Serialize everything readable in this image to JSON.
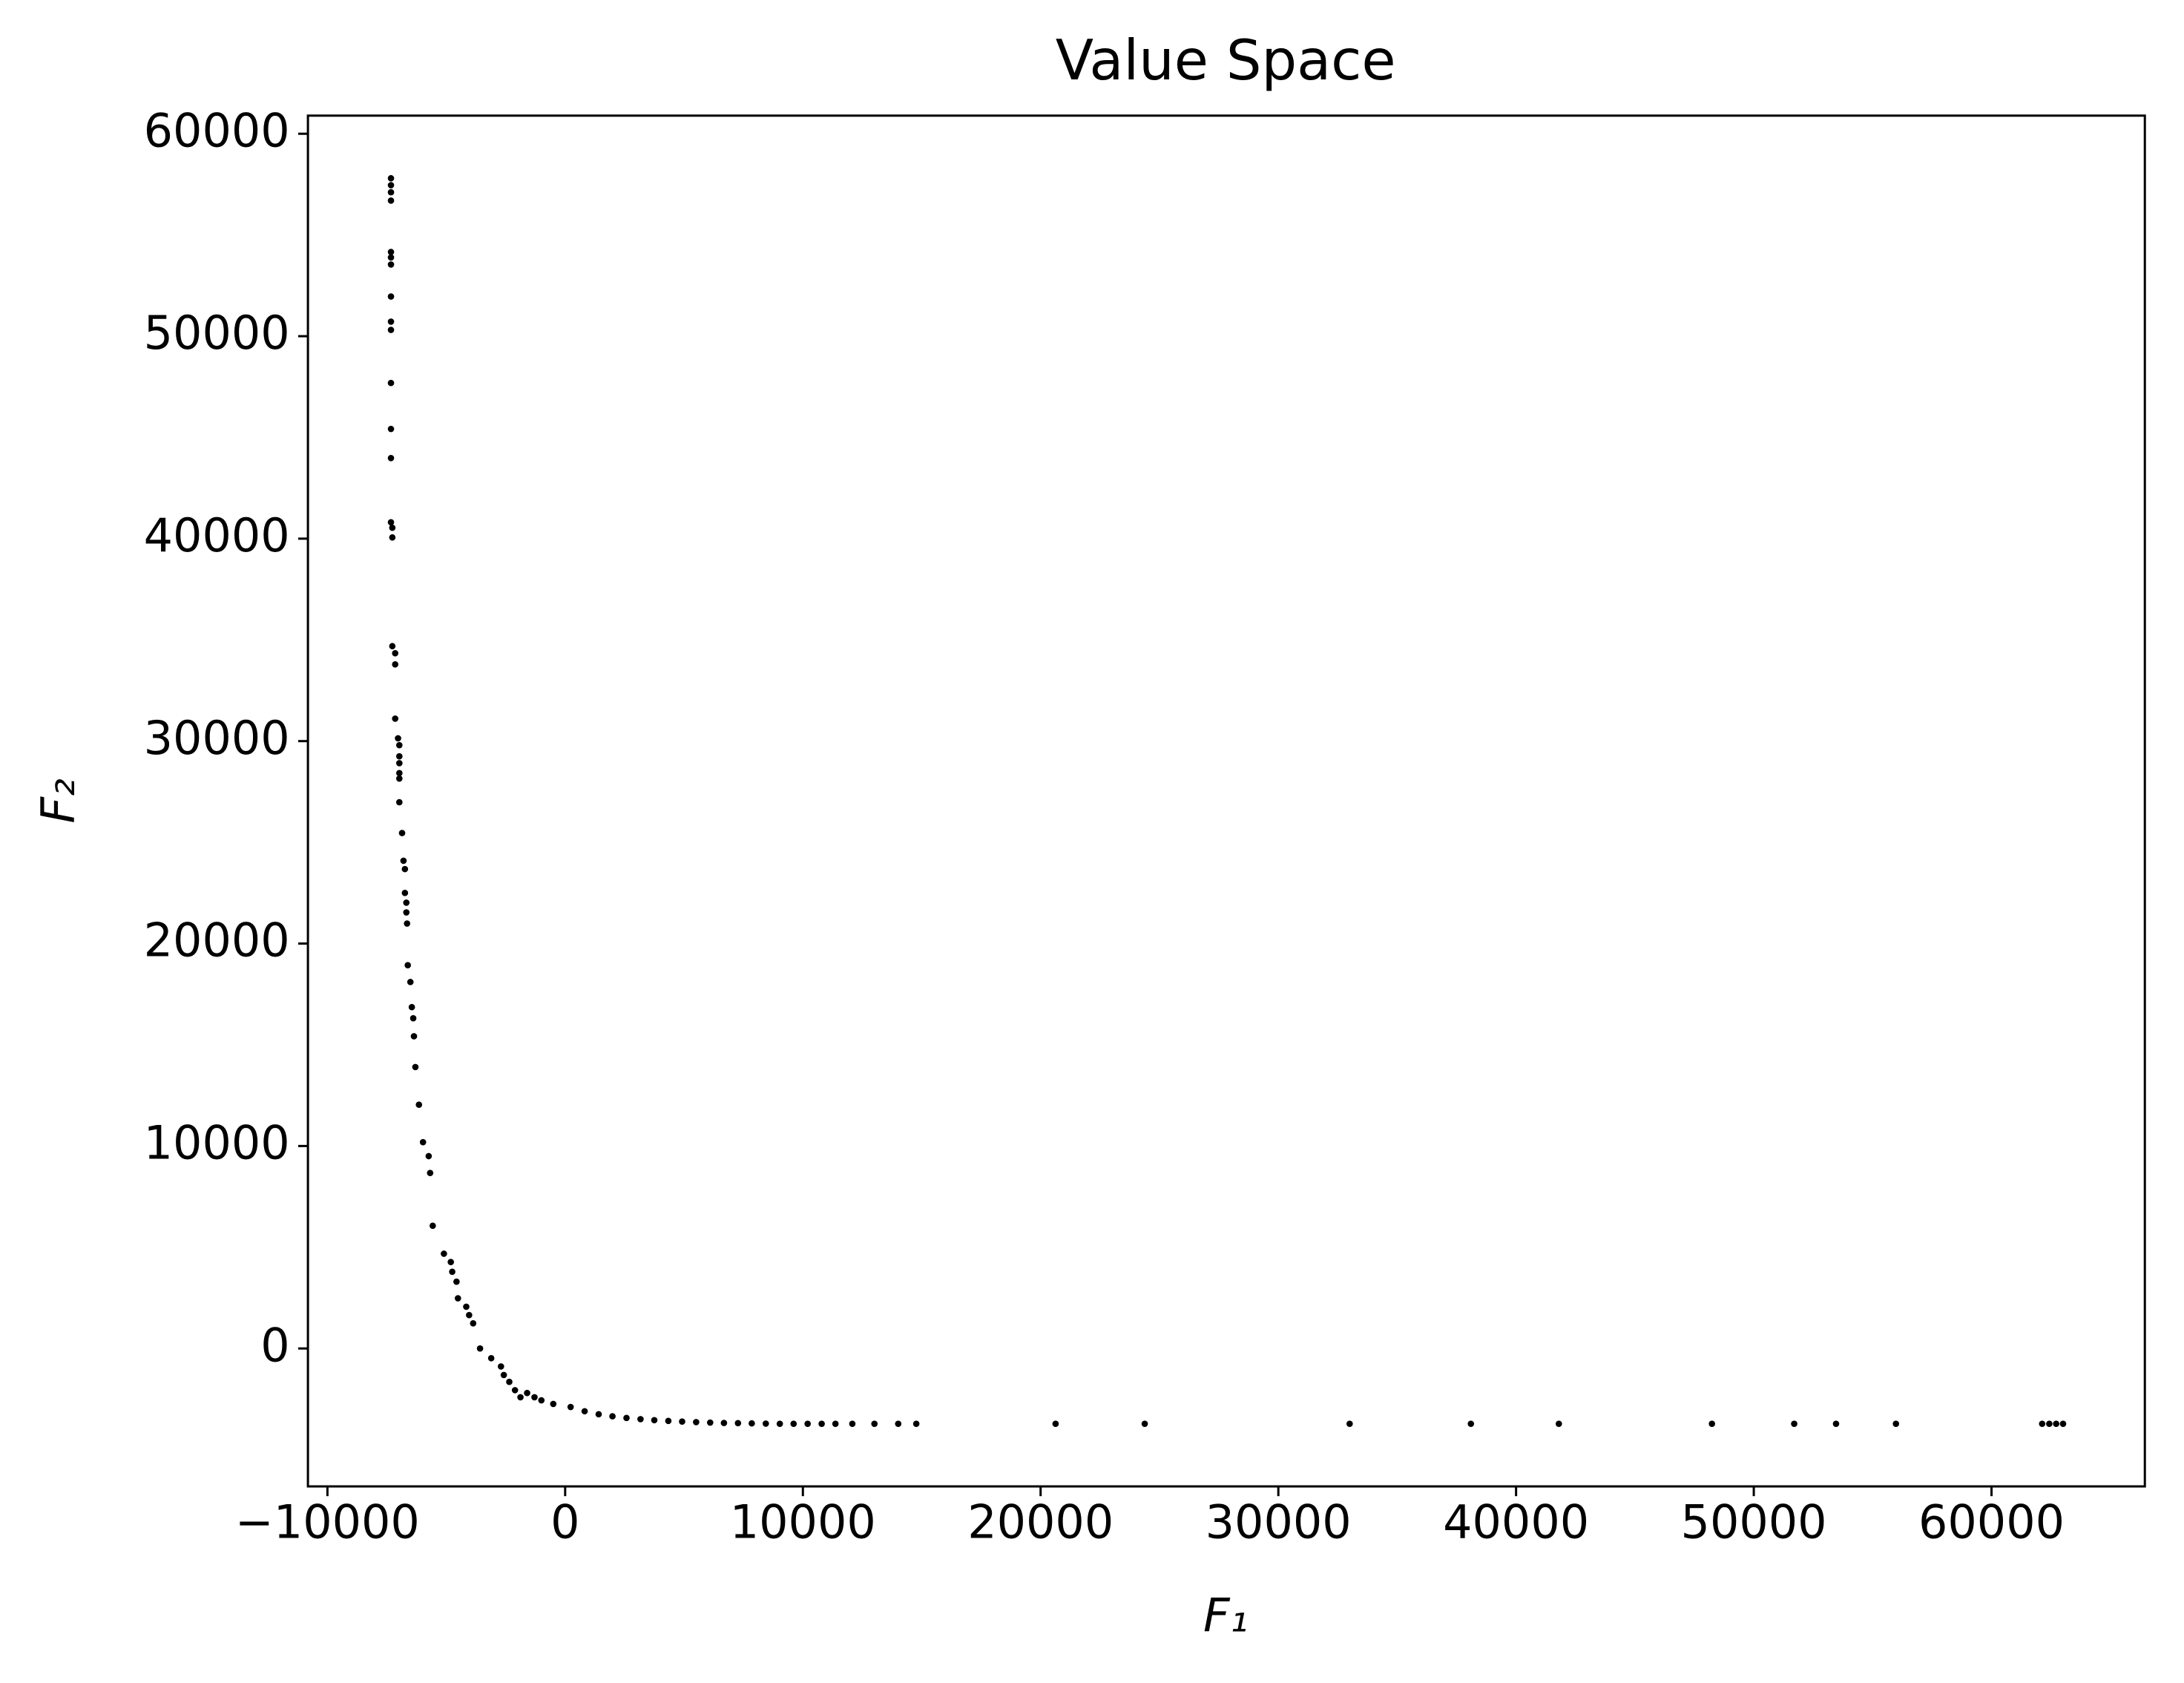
{
  "chart_data": {
    "type": "scatter",
    "title": "Value Space",
    "xlabel": "F₁",
    "ylabel": "F₂",
    "color": "#000000",
    "x": [
      -7327,
      -7327,
      -7327,
      -7327,
      -7327,
      -7327,
      -7327,
      -7327,
      -7327,
      -7327,
      -7327,
      -7327,
      -7327,
      -7327,
      -7270,
      -7270,
      -7270,
      -7150,
      -7150,
      -7150,
      -7030,
      -6975,
      -6975,
      -6975,
      -6975,
      -6975,
      -6975,
      -6860,
      -6800,
      -6740,
      -6740,
      -6680,
      -6680,
      -6650,
      -6620,
      -6510,
      -6450,
      -6390,
      -6360,
      -6300,
      -6150,
      -5980,
      -5740,
      -5680,
      -5570,
      -5100,
      -4810,
      -4750,
      -4570,
      -4510,
      -4160,
      -4040,
      -3870,
      -3580,
      -3110,
      -2700,
      -2580,
      -2350,
      -2110,
      -1880,
      -1600,
      -1290,
      -1000,
      -500,
      230,
      820,
      1410,
      1990,
      2580,
      3170,
      3750,
      4340,
      4920,
      5510,
      6100,
      6680,
      7270,
      7850,
      8440,
      9030,
      9610,
      10200,
      10790,
      11370,
      12080,
      13010,
      14010,
      14770,
      20630,
      24380,
      33000,
      38100,
      41800,
      48240,
      51700,
      53460,
      55980,
      62130,
      62430,
      62720,
      63010
    ],
    "values": [
      57800,
      57460,
      57110,
      56700,
      54160,
      53890,
      53540,
      51960,
      50720,
      50310,
      47690,
      45420,
      43980,
      40810,
      40540,
      40060,
      34690,
      34340,
      33790,
      31110,
      30140,
      29800,
      29250,
      28910,
      28420,
      28150,
      26980,
      25460,
      24090,
      23680,
      22500,
      22020,
      21540,
      20990,
      18930,
      18100,
      16860,
      16310,
      15420,
      13900,
      12040,
      10190,
      9500,
      8670,
      6060,
      4680,
      4270,
      3790,
      3300,
      2480,
      2060,
      1650,
      1240,
      0,
      -480,
      -890,
      -1310,
      -1650,
      -2060,
      -2410,
      -2200,
      -2410,
      -2560,
      -2740,
      -2890,
      -3100,
      -3250,
      -3350,
      -3430,
      -3490,
      -3540,
      -3580,
      -3610,
      -3640,
      -3660,
      -3680,
      -3690,
      -3700,
      -3710,
      -3720,
      -3720,
      -3720,
      -3720,
      -3720,
      -3720,
      -3720,
      -3720,
      -3720,
      -3720,
      -3720,
      -3720,
      -3720,
      -3720,
      -3720,
      -3720,
      -3720,
      -3720,
      -3720,
      -3720,
      -3720,
      -3720
    ],
    "xlim": [
      -10820,
      66450
    ],
    "ylim": [
      -6813,
      60895
    ],
    "xticks": [
      {
        "value": -10000,
        "label": "−10000"
      },
      0,
      10000,
      20000,
      30000,
      40000,
      50000,
      60000
    ],
    "yticks": [
      0,
      10000,
      20000,
      30000,
      40000,
      50000,
      60000
    ]
  }
}
